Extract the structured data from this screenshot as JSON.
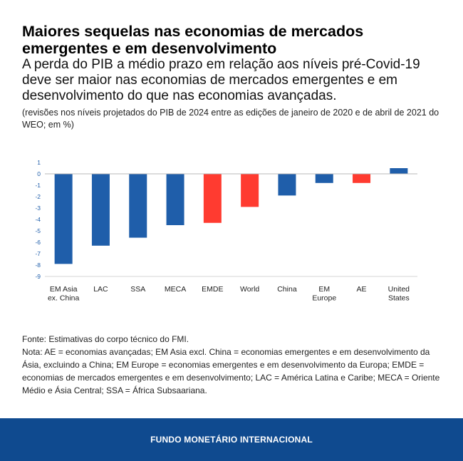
{
  "header": {
    "title": "Maiores sequelas nas economias de mercados emergentes e em desenvolvimento",
    "subtitle": "A perda do PIB a médio prazo em relação aos níveis pré-Covid-19 deve ser maior nas economias de mercados emergentes e em desenvolvimento do que nas economias avançadas.",
    "note": "(revisões nos níveis projetados do PIB de 2024 entre as edições de janeiro de 2020 e de abril de 2021 do WEO; em %)"
  },
  "chart_data": {
    "type": "bar",
    "categories": [
      [
        "EM Asia",
        "ex. China"
      ],
      [
        "LAC"
      ],
      [
        "SSA"
      ],
      [
        "MECA"
      ],
      [
        "EMDE"
      ],
      [
        "World"
      ],
      [
        "China"
      ],
      [
        "EM",
        "Europe"
      ],
      [
        "AE"
      ],
      [
        "United",
        "States"
      ]
    ],
    "values": [
      -7.9,
      -6.3,
      -5.6,
      -4.5,
      -4.3,
      -2.9,
      -1.9,
      -0.8,
      -0.8,
      0.5
    ],
    "colors": [
      "#1f5eaa",
      "#1f5eaa",
      "#1f5eaa",
      "#1f5eaa",
      "#ff3b30",
      "#ff3b30",
      "#1f5eaa",
      "#1f5eaa",
      "#ff3b30",
      "#1f5eaa"
    ],
    "ylim": [
      -9,
      1
    ],
    "yticks": [
      "1",
      "0",
      "-1",
      "-2",
      "-3",
      "-4",
      "-5",
      "-6",
      "-7",
      "-8",
      "-9"
    ],
    "grid": false,
    "title": "",
    "xlabel": "",
    "ylabel": ""
  },
  "footnotes": {
    "source": "Fonte: Estimativas do corpo técnico do FMI.",
    "note": "Nota: AE = economias avançadas; EM Asia excl. China = economias emergentes e em desenvolvimento da Ásia, excluindo a China; EM Europe = economias emergentes e em desenvolvimento da Europa; EMDE = economias de mercados emergentes e em desenvolvimento; LAC = América Latina e Caribe; MECA = Oriente Médio e Ásia Central; SSA = África Subsaariana."
  },
  "footer": {
    "label": "FUNDO MONETÁRIO INTERNACIONAL",
    "background": "#0f4a8f"
  }
}
